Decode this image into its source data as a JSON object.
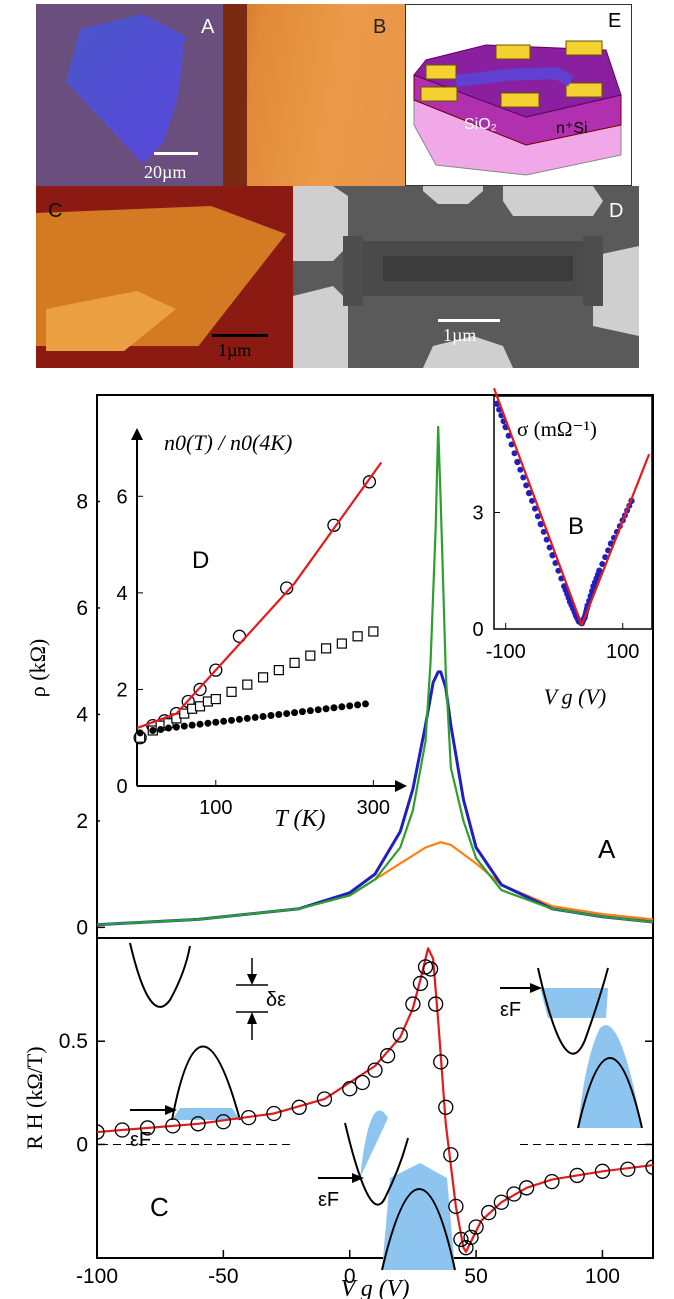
{
  "images": {
    "a": {
      "label": "A",
      "scale": "20µm"
    },
    "b": {
      "label": "B"
    },
    "c": {
      "label": "C",
      "scale": "1µm"
    },
    "d": {
      "label": "D",
      "scale": "1µm"
    },
    "e": {
      "label": "E",
      "sio2": "SiO₂",
      "si": "n⁺Si"
    }
  },
  "colors": {
    "green": "#2ca02c",
    "blue": "#2020c0",
    "orange": "#ff7f0e",
    "red": "#e41a1c",
    "fill": "#8ec5f0"
  },
  "chart_data": [
    {
      "type": "line",
      "id": "A",
      "label": "A",
      "ylabel": "ρ (kΩ)",
      "xlim": [
        -100,
        120
      ],
      "ylim": [
        -0.2,
        10
      ],
      "yticks": [
        "0",
        "2",
        "4",
        "6",
        "8"
      ],
      "series": [
        {
          "name": "green",
          "color": "#2ca02c",
          "x": [
            -100,
            -60,
            -20,
            0,
            10,
            20,
            25,
            30,
            32,
            34,
            35,
            36,
            38,
            40,
            45,
            50,
            60,
            80,
            100,
            120
          ],
          "y": [
            0.05,
            0.15,
            0.35,
            0.6,
            0.9,
            1.5,
            2.2,
            3.5,
            5,
            7.5,
            9.4,
            8,
            4.8,
            3,
            2,
            1.3,
            0.7,
            0.35,
            0.2,
            0.1
          ]
        },
        {
          "name": "blue",
          "color": "#2020c0",
          "x": [
            -100,
            -60,
            -20,
            0,
            10,
            20,
            25,
            30,
            33,
            35,
            36,
            38,
            40,
            45,
            50,
            60,
            80,
            100,
            120
          ],
          "y": [
            0.05,
            0.15,
            0.35,
            0.65,
            1.0,
            1.8,
            2.6,
            3.8,
            4.6,
            4.8,
            4.8,
            4.5,
            3.8,
            2.4,
            1.5,
            0.8,
            0.35,
            0.2,
            0.1
          ]
        },
        {
          "name": "orange",
          "color": "#ff7f0e",
          "x": [
            -100,
            -60,
            -20,
            0,
            20,
            30,
            36,
            40,
            50,
            60,
            80,
            100,
            120
          ],
          "y": [
            0.05,
            0.15,
            0.35,
            0.6,
            1.2,
            1.5,
            1.6,
            1.55,
            1.2,
            0.8,
            0.4,
            0.25,
            0.15
          ]
        }
      ]
    },
    {
      "type": "line",
      "id": "B",
      "label": "B",
      "title": "σ (mΩ⁻¹)",
      "xlabel": "V g (V)",
      "xlim": [
        -120,
        150
      ],
      "ylim": [
        0,
        6
      ],
      "xticks": [
        "-100",
        "100"
      ],
      "yticks": [
        "0",
        "3"
      ],
      "series": [
        {
          "name": "data",
          "color": "#2020c0",
          "x": [
            -115,
            -100,
            -80,
            -60,
            -40,
            -20,
            0,
            10,
            20,
            25,
            30,
            35,
            40,
            50,
            60,
            80,
            100,
            115
          ],
          "y": [
            5.8,
            5.2,
            4.3,
            3.5,
            2.7,
            1.9,
            1.1,
            0.7,
            0.35,
            0.2,
            0.15,
            0.3,
            0.6,
            1.1,
            1.5,
            2.2,
            2.8,
            3.3
          ]
        },
        {
          "name": "fit",
          "color": "#e41a1c",
          "x": [
            -120,
            30,
            145
          ],
          "y": [
            6.2,
            0.1,
            4.5
          ]
        }
      ]
    },
    {
      "type": "scatter",
      "id": "C",
      "label": "C",
      "ylabel": "R H (kΩ/T)",
      "xlabel": "V g (V)",
      "xlim": [
        -100,
        120
      ],
      "ylim": [
        -0.55,
        1.0
      ],
      "xticks": [
        "-100",
        "-50",
        "0",
        "50",
        "100"
      ],
      "yticks": [
        "0",
        "0.5"
      ],
      "labels": {
        "eps": "εF",
        "delta": "δε"
      },
      "series": [
        {
          "name": "data",
          "x": [
            -100,
            -90,
            -80,
            -70,
            -60,
            -50,
            -40,
            -30,
            -20,
            -10,
            0,
            5,
            10,
            15,
            20,
            25,
            28,
            30,
            32,
            34,
            36,
            38,
            40,
            42,
            44,
            46,
            48,
            50,
            55,
            60,
            65,
            70,
            80,
            90,
            100,
            110,
            120
          ],
          "y": [
            0.06,
            0.07,
            0.08,
            0.09,
            0.1,
            0.11,
            0.13,
            0.15,
            0.18,
            0.22,
            0.27,
            0.3,
            0.36,
            0.43,
            0.53,
            0.68,
            0.78,
            0.86,
            0.85,
            0.68,
            0.4,
            0.18,
            -0.05,
            -0.3,
            -0.46,
            -0.5,
            -0.45,
            -0.4,
            -0.33,
            -0.28,
            -0.24,
            -0.21,
            -0.18,
            -0.15,
            -0.13,
            -0.12,
            -0.11
          ]
        },
        {
          "name": "fit",
          "x": [
            -100,
            -60,
            -30,
            -10,
            10,
            20,
            25,
            28,
            31,
            33,
            35,
            38,
            42,
            45,
            46,
            48,
            52,
            60,
            70,
            80,
            100,
            120
          ],
          "y": [
            0.06,
            0.1,
            0.15,
            0.22,
            0.38,
            0.52,
            0.66,
            0.8,
            0.95,
            0.9,
            0.6,
            0.1,
            -0.3,
            -0.5,
            -0.52,
            -0.47,
            -0.37,
            -0.28,
            -0.21,
            -0.17,
            -0.13,
            -0.1
          ]
        }
      ]
    },
    {
      "type": "scatter",
      "id": "D",
      "label": "D",
      "title": "n0(T) / n0(4K)",
      "xlabel": "T (K)",
      "xlim": [
        0,
        330
      ],
      "ylim": [
        0,
        7
      ],
      "xticks": [
        "100",
        "300"
      ],
      "yticks": [
        "0",
        "2",
        "4",
        "6"
      ],
      "series": [
        {
          "name": "circles",
          "marker": "open-circle",
          "x": [
            4,
            20,
            35,
            50,
            65,
            80,
            100,
            130,
            190,
            250,
            295
          ],
          "y": [
            1.0,
            1.25,
            1.35,
            1.5,
            1.75,
            2.0,
            2.4,
            3.1,
            4.1,
            5.4,
            6.3
          ]
        },
        {
          "name": "squares",
          "marker": "open-square",
          "x": [
            4,
            20,
            30,
            40,
            50,
            60,
            70,
            80,
            90,
            100,
            120,
            140,
            160,
            180,
            200,
            220,
            240,
            260,
            280,
            300
          ],
          "y": [
            1.0,
            1.15,
            1.25,
            1.3,
            1.4,
            1.5,
            1.6,
            1.65,
            1.75,
            1.8,
            1.95,
            2.1,
            2.25,
            2.4,
            2.55,
            2.7,
            2.85,
            2.95,
            3.1,
            3.2
          ]
        },
        {
          "name": "dots",
          "marker": "filled-circle",
          "x": [
            4,
            20,
            30,
            40,
            50,
            60,
            70,
            80,
            90,
            100,
            110,
            120,
            130,
            140,
            150,
            160,
            170,
            180,
            190,
            200,
            210,
            220,
            230,
            240,
            250,
            260,
            270,
            280,
            290
          ],
          "y": [
            1.1,
            1.15,
            1.17,
            1.2,
            1.22,
            1.24,
            1.26,
            1.28,
            1.3,
            1.32,
            1.34,
            1.36,
            1.38,
            1.4,
            1.42,
            1.44,
            1.46,
            1.48,
            1.5,
            1.52,
            1.54,
            1.56,
            1.58,
            1.6,
            1.62,
            1.64,
            1.66,
            1.68,
            1.7
          ]
        },
        {
          "name": "fit",
          "marker": "line",
          "x": [
            0,
            50,
            100,
            200,
            310
          ],
          "y": [
            1.2,
            1.5,
            2.4,
            4.2,
            6.7
          ]
        }
      ]
    }
  ]
}
